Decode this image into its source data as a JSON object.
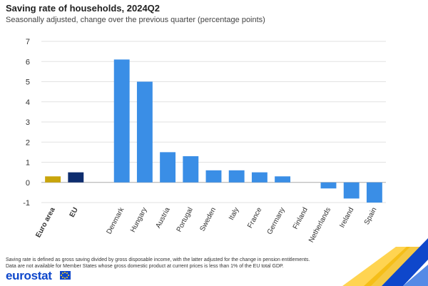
{
  "title": "Saving rate of households, 2024Q2",
  "subtitle": "Seasonally adjusted, change over the previous quarter (percentage points)",
  "footnote_line1": "Saving rate is defined as gross saving divided by gross disposable income, with the latter adjusted for the change in pension entitlements.",
  "footnote_line2": "Data are not available for Member States whose gross domestic product at current prices is less than 1% of the EU total GDP.",
  "logo_text": "eurostat",
  "colors": {
    "euro_area": "#c9a50b",
    "eu": "#0e2d6e",
    "country": "#3a8ee6",
    "grid": "#e2e2e2",
    "zero": "#aaaaaa"
  },
  "chart_data": {
    "type": "bar",
    "title": "Saving rate of households, 2024Q2",
    "subtitle": "Seasonally adjusted, change over the previous quarter (percentage points)",
    "categories": [
      "Euro area",
      "EU",
      "",
      "Denmark",
      "Hungary",
      "Austria",
      "Portugal",
      "Sweden",
      "Italy",
      "France",
      "Germany",
      "Finland",
      "Netherlands",
      "Ireland",
      "Spain"
    ],
    "values": [
      0.3,
      0.5,
      null,
      6.1,
      5.0,
      1.5,
      1.3,
      0.6,
      0.6,
      0.5,
      0.3,
      0.0,
      -0.3,
      -0.8,
      -1.0
    ],
    "bold_categories": [
      "Euro area",
      "EU"
    ],
    "ylim": [
      -1,
      7
    ],
    "yticks": [
      -1,
      0,
      1,
      2,
      3,
      4,
      5,
      6,
      7
    ],
    "grid": true,
    "legend": "none"
  }
}
